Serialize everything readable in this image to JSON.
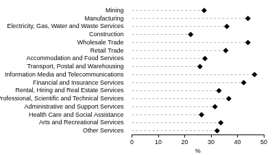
{
  "chart_data": {
    "type": "dot",
    "orientation": "horizontal",
    "categories": [
      "Mining",
      "Manufacturing",
      "Electricity, Gas, Water and Waste Services",
      "Construction",
      "Wholesale Trade",
      "Retail Trade",
      "Accommodation and Food Services",
      "Transport, Postal and Warehousing",
      "Information Media and Telecommunications",
      "Financial and Insurance Services",
      "Rental, Hiring and Real Estate Services",
      "Professional, Scientific and Technical Services",
      "Administrative and Support Services",
      "Health Care and Social Assistance",
      "Arts and Recreational Services",
      "Other Services"
    ],
    "values": [
      27.4,
      44,
      36,
      22.3,
      44,
      35.6,
      27.7,
      25.8,
      46.5,
      42.4,
      33,
      36.7,
      31.5,
      26.4,
      33.7,
      32.3
    ],
    "color": "#000000",
    "marker": "diamond",
    "line_style": "dashed",
    "x_label": "%",
    "xlim": [
      0,
      50
    ],
    "xticks": [
      0,
      10,
      20,
      30,
      40,
      50
    ],
    "grid": false
  }
}
